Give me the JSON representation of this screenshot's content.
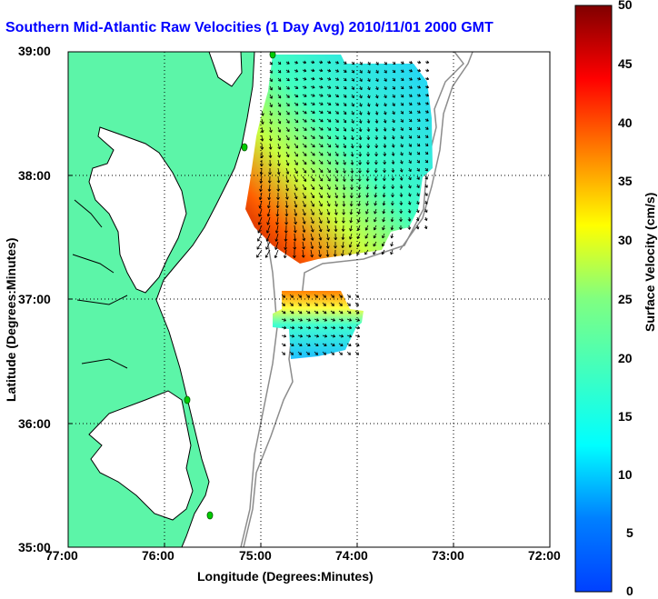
{
  "title": "Southern Mid-Atlantic Raw Velocities (1 Day Avg) 2010/11/01 2000 GMT",
  "xlabel": "Longitude (Degrees:Minutes)",
  "ylabel": "Latitude (Degrees:Minutes)",
  "colorbar_label": "Surface Velocity (cm/s)",
  "x_ticks": [
    "77:00",
    "76:00",
    "75:00",
    "74:00",
    "73:00",
    "72:00"
  ],
  "y_ticks": [
    "39:00",
    "38:00",
    "37:00",
    "36:00",
    "35:00"
  ],
  "colorbar_ticks": [
    "50",
    "45",
    "40",
    "35",
    "30",
    "25",
    "20",
    "15",
    "10",
    "5",
    "0"
  ],
  "colors": {
    "land": "#5cf5a8",
    "title": "#0000ff",
    "bathymetry": "#8c8c8c",
    "station_marker": "#00cc00"
  },
  "chart_data": {
    "type": "quiver-map",
    "xlim": [
      -77,
      -72
    ],
    "ylim": [
      35,
      39
    ],
    "colorbar_range": [
      0,
      50
    ],
    "grid": true,
    "colormap": "jet"
  }
}
